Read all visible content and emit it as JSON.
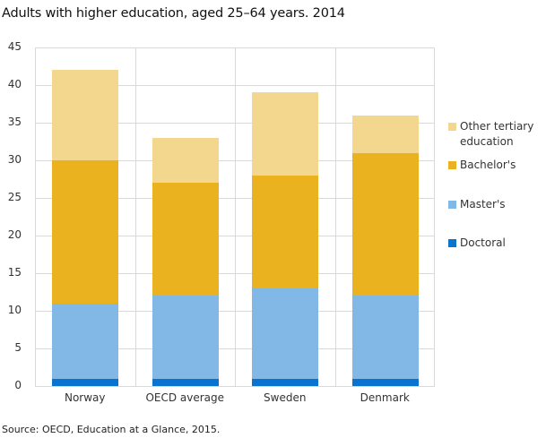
{
  "title": "Adults with higher education, aged 25–64 years. 2014",
  "source": "Source: OECD, Education at a Glance, 2015.",
  "colors": {
    "doctoral": "#0a72cf",
    "masters": "#82b8e5",
    "bachelors": "#eab21f",
    "other": "#f3d78f",
    "grid": "#d9d9d9"
  },
  "legend": [
    {
      "label": "Other tertiary education",
      "color": "#f3d78f"
    },
    {
      "label": "Bachelor's",
      "color": "#eab21f"
    },
    {
      "label": "Master's",
      "color": "#82b8e5"
    },
    {
      "label": "Doctoral",
      "color": "#0a72cf"
    }
  ],
  "y_ticks": [
    "0",
    "5",
    "10",
    "15",
    "20",
    "25",
    "30",
    "35",
    "40",
    "45"
  ],
  "chart_data": {
    "type": "bar",
    "stacked": true,
    "title": "Adults with higher education, aged 25–64 years. 2014",
    "xlabel": "",
    "ylabel": "",
    "ylim": [
      0,
      45
    ],
    "yticks": [
      0,
      5,
      10,
      15,
      20,
      25,
      30,
      35,
      40,
      45
    ],
    "grid": true,
    "legend_position": "right",
    "categories": [
      "Norway",
      "OECD average",
      "Sweden",
      "Denmark"
    ],
    "series": [
      {
        "name": "Doctoral",
        "values": [
          1,
          1,
          1,
          1
        ]
      },
      {
        "name": "Master's",
        "values": [
          10,
          11,
          12,
          11
        ]
      },
      {
        "name": "Bachelor's",
        "values": [
          19,
          15,
          15,
          19
        ]
      },
      {
        "name": "Other tertiary education",
        "values": [
          12,
          6,
          11,
          5
        ]
      }
    ],
    "totals": [
      42,
      33,
      39,
      36
    ],
    "source": "Source: OECD, Education at a Glance, 2015."
  }
}
